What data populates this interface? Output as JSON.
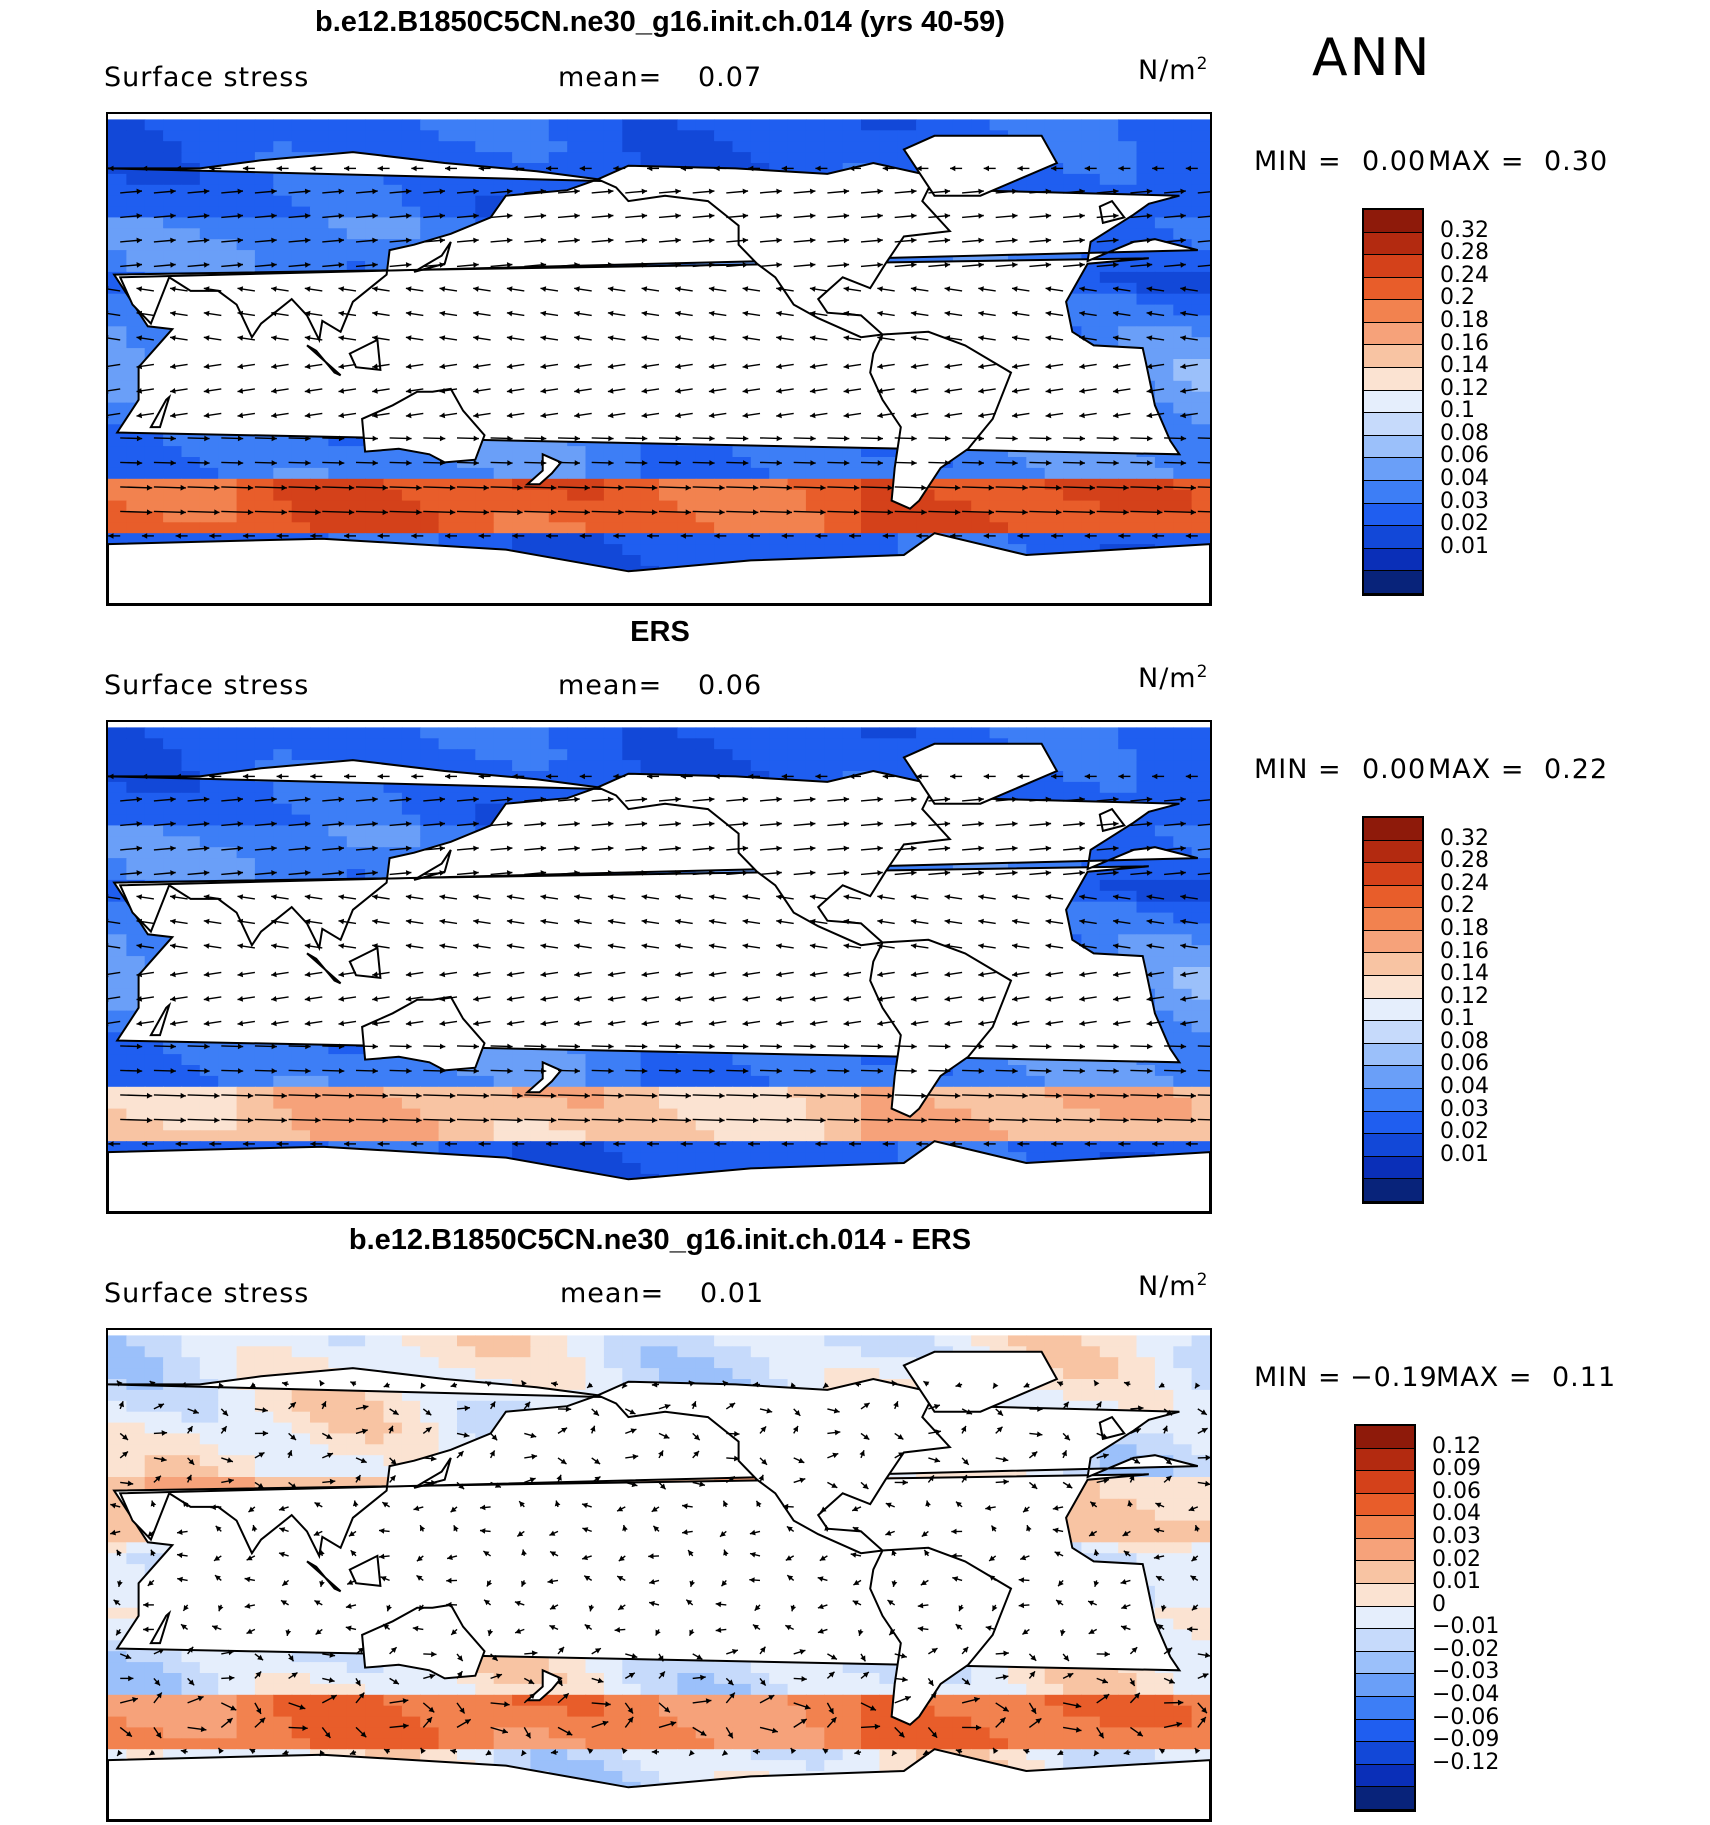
{
  "season": "ANN",
  "colors": {
    "land": "#ffffff",
    "coast": "#000000",
    "abs_scale": [
      "#08237a",
      "#0a2fb8",
      "#1248d8",
      "#1f5ef0",
      "#3d7ef6",
      "#6a9ff8",
      "#9bc0fa",
      "#c6dafb",
      "#e5eefc",
      "#fbe3d2",
      "#f8c4a3",
      "#f6a27a",
      "#f2824f",
      "#e85d2a",
      "#d4411a",
      "#b32a10",
      "#8e1a0a"
    ],
    "diff_scale": [
      "#08237a",
      "#0a2fb8",
      "#1248d8",
      "#1f5ef0",
      "#3d7ef6",
      "#6a9ff8",
      "#9bc0fa",
      "#c6dafb",
      "#e5eefc",
      "#fbe3d2",
      "#f8c4a3",
      "#f6a27a",
      "#f2824f",
      "#e85d2a",
      "#d4411a",
      "#b32a10",
      "#8e1a0a"
    ]
  },
  "panels": [
    {
      "id": "model",
      "title": "b.e12.B1850C5CN.ne30_g16.init.ch.014 (yrs 40-59)",
      "variable": "Surface stress",
      "mean_label": "mean=",
      "mean_value": "0.07",
      "units_base": "N/m",
      "units_exp": "2",
      "min_label": "MIN =",
      "min_value": "0.00",
      "max_label": "MAX =",
      "max_value": "0.30",
      "colorbar": [
        "0.32",
        "0.28",
        "0.24",
        "0.2",
        "0.18",
        "0.16",
        "0.14",
        "0.12",
        "0.1",
        "0.08",
        "0.06",
        "0.04",
        "0.03",
        "0.02",
        "0.01"
      ],
      "field": [
        {
          "lat_band": "southern ocean 45-60S",
          "level": "0.16-0.24"
        },
        {
          "lat_band": "mid-latitude oceans",
          "level": "0.08-0.12"
        },
        {
          "lat_band": "tropics",
          "level": "0.03-0.08"
        }
      ]
    },
    {
      "id": "obs",
      "title": "ERS",
      "variable": "Surface stress",
      "mean_label": "mean=",
      "mean_value": "0.06",
      "units_base": "N/m",
      "units_exp": "2",
      "min_label": "MIN =",
      "min_value": "0.00",
      "max_label": "MAX =",
      "max_value": "0.22",
      "colorbar": [
        "0.32",
        "0.28",
        "0.24",
        "0.2",
        "0.18",
        "0.16",
        "0.14",
        "0.12",
        "0.1",
        "0.08",
        "0.06",
        "0.04",
        "0.03",
        "0.02",
        "0.01"
      ]
    },
    {
      "id": "diff",
      "title": "b.e12.B1850C5CN.ne30_g16.init.ch.014 - ERS",
      "variable": "Surface stress",
      "mean_label": "mean=",
      "mean_value": "0.01",
      "units_base": "N/m",
      "units_exp": "2",
      "min_label": "MIN =",
      "min_value": "−0.19",
      "max_label": "MAX =",
      "max_value": "0.11",
      "colorbar": [
        "0.12",
        "0.09",
        "0.06",
        "0.04",
        "0.03",
        "0.02",
        "0.01",
        "0",
        "−0.01",
        "−0.02",
        "−0.03",
        "−0.04",
        "−0.06",
        "−0.09",
        "−0.12"
      ]
    }
  ]
}
